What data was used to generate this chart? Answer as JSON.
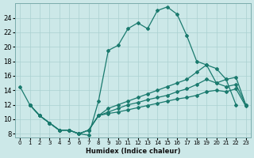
{
  "xlabel": "Humidex (Indice chaleur)",
  "xlim": [
    -0.5,
    23.5
  ],
  "ylim": [
    7.5,
    26
  ],
  "yticks": [
    8,
    10,
    12,
    14,
    16,
    18,
    20,
    22,
    24
  ],
  "xticks": [
    0,
    1,
    2,
    3,
    4,
    5,
    6,
    7,
    8,
    9,
    10,
    11,
    12,
    13,
    14,
    15,
    16,
    17,
    18,
    19,
    20,
    21,
    22,
    23
  ],
  "bg_color": "#cce8e8",
  "line_color": "#1a7a6e",
  "grid_color": "#aad0d0",
  "line1_x": [
    0,
    1,
    2,
    3,
    4,
    5,
    6,
    7,
    8,
    9,
    10,
    11,
    12,
    13,
    14,
    15,
    16,
    17,
    18,
    19,
    20,
    21,
    22
  ],
  "line1_y": [
    14.5,
    12.0,
    10.5,
    9.5,
    8.5,
    8.5,
    8.0,
    7.8,
    12.5,
    19.5,
    20.2,
    22.5,
    23.3,
    22.5,
    25.0,
    25.5,
    24.5,
    21.5,
    18.0,
    17.5,
    15.0,
    15.5,
    12.0
  ],
  "line2_x": [
    1,
    2,
    3,
    4,
    5,
    6,
    7,
    8,
    9,
    10,
    11,
    12,
    13,
    14,
    15,
    16,
    17,
    18,
    19,
    20,
    21,
    22,
    23
  ],
  "line2_y": [
    12.0,
    10.5,
    9.5,
    8.5,
    8.5,
    8.0,
    8.5,
    10.5,
    11.5,
    12.0,
    12.5,
    13.0,
    13.5,
    14.0,
    14.5,
    15.0,
    15.5,
    16.5,
    17.5,
    17.0,
    15.5,
    15.8,
    12.0
  ],
  "line3_x": [
    1,
    2,
    3,
    4,
    5,
    6,
    7,
    8,
    9,
    10,
    11,
    12,
    13,
    14,
    15,
    16,
    17,
    18,
    19,
    20,
    21,
    22,
    23
  ],
  "line3_y": [
    12.0,
    10.5,
    9.5,
    8.5,
    8.5,
    8.0,
    8.5,
    10.5,
    11.0,
    11.5,
    12.0,
    12.3,
    12.7,
    13.0,
    13.3,
    13.8,
    14.2,
    14.8,
    15.5,
    15.0,
    14.5,
    14.8,
    12.0
  ],
  "line4_x": [
    1,
    2,
    3,
    4,
    5,
    6,
    7,
    8,
    9,
    10,
    11,
    12,
    13,
    14,
    15,
    16,
    17,
    18,
    19,
    20,
    21,
    22,
    23
  ],
  "line4_y": [
    12.0,
    10.5,
    9.5,
    8.5,
    8.5,
    8.0,
    8.5,
    10.5,
    10.8,
    11.0,
    11.3,
    11.6,
    11.9,
    12.2,
    12.5,
    12.8,
    13.0,
    13.3,
    13.8,
    14.0,
    13.8,
    14.2,
    11.8
  ]
}
